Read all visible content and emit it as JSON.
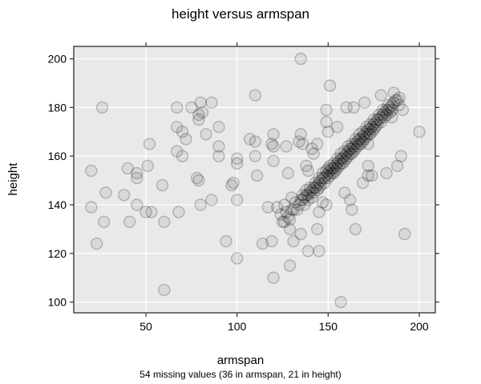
{
  "window": {
    "background": "#ffffff"
  },
  "chart_data": {
    "type": "scatter",
    "title": "height versus armspan",
    "xlabel": "armspan",
    "ylabel": "height",
    "footnote": "54 missing values (36 in armspan, 21 in height)",
    "x_ticks": [
      50,
      100,
      150,
      200
    ],
    "y_ticks": [
      100,
      120,
      140,
      160,
      180,
      200
    ],
    "xlim": [
      10.4,
      208.8
    ],
    "ylim": [
      95.6,
      205.1
    ],
    "grid": true,
    "legend": "none",
    "colors": {
      "panel_bg": "#e9e9e9",
      "grid": "#ffffff",
      "border": "#2e2e2e",
      "tick": "#2e2e2e",
      "point_fill": "rgba(0,0,0,0.065)",
      "point_stroke": "rgba(0,0,0,0.22)"
    },
    "point_radius": 7,
    "points": [
      [
        26,
        180
      ],
      [
        67,
        180
      ],
      [
        75,
        180
      ],
      [
        67,
        172
      ],
      [
        70,
        170
      ],
      [
        72,
        167
      ],
      [
        52,
        165
      ],
      [
        67,
        162
      ],
      [
        70,
        160
      ],
      [
        20,
        154
      ],
      [
        40,
        155
      ],
      [
        45,
        153
      ],
      [
        51,
        156
      ],
      [
        135,
        200
      ],
      [
        110,
        185
      ],
      [
        80,
        182
      ],
      [
        86,
        182
      ],
      [
        81,
        178
      ],
      [
        79,
        177
      ],
      [
        79,
        175
      ],
      [
        90,
        172
      ],
      [
        83,
        169
      ],
      [
        90,
        164
      ],
      [
        90,
        160
      ],
      [
        100,
        159
      ],
      [
        100,
        157
      ],
      [
        107,
        167
      ],
      [
        110,
        166
      ],
      [
        110,
        160
      ],
      [
        120,
        169
      ],
      [
        119,
        165
      ],
      [
        120,
        164
      ],
      [
        127,
        164
      ],
      [
        135,
        169
      ],
      [
        134,
        166
      ],
      [
        136,
        165
      ],
      [
        120,
        158
      ],
      [
        141,
        163
      ],
      [
        138,
        156
      ],
      [
        139,
        154
      ],
      [
        111,
        152
      ],
      [
        128,
        153
      ],
      [
        78,
        151
      ],
      [
        151,
        189
      ],
      [
        179,
        185
      ],
      [
        186,
        186
      ],
      [
        149,
        179
      ],
      [
        160,
        180
      ],
      [
        164,
        180
      ],
      [
        170,
        182
      ],
      [
        189,
        181
      ],
      [
        185,
        176
      ],
      [
        191,
        179
      ],
      [
        149,
        174
      ],
      [
        150,
        170
      ],
      [
        155,
        172
      ],
      [
        200,
        170
      ],
      [
        190,
        160
      ],
      [
        172,
        156
      ],
      [
        188,
        156
      ],
      [
        182,
        153
      ],
      [
        174,
        152
      ],
      [
        45,
        151
      ],
      [
        59,
        148
      ],
      [
        28,
        145
      ],
      [
        38,
        144
      ],
      [
        20,
        139
      ],
      [
        45,
        140
      ],
      [
        50,
        137
      ],
      [
        53,
        137
      ],
      [
        68,
        137
      ],
      [
        27,
        133
      ],
      [
        41,
        133
      ],
      [
        60,
        133
      ],
      [
        23,
        124
      ],
      [
        60,
        105
      ],
      [
        79,
        150
      ],
      [
        98,
        149
      ],
      [
        97,
        148
      ],
      [
        80,
        140
      ],
      [
        86,
        142
      ],
      [
        100,
        142
      ],
      [
        117,
        139
      ],
      [
        122,
        139
      ],
      [
        126,
        140
      ],
      [
        130,
        143
      ],
      [
        124,
        136
      ],
      [
        129,
        130
      ],
      [
        135,
        128
      ],
      [
        139,
        121
      ],
      [
        114,
        124
      ],
      [
        119,
        125
      ],
      [
        131,
        125
      ],
      [
        94,
        125
      ],
      [
        100,
        118
      ],
      [
        129,
        115
      ],
      [
        120,
        110
      ],
      [
        169,
        149
      ],
      [
        159,
        145
      ],
      [
        162,
        142
      ],
      [
        163,
        138
      ],
      [
        149,
        140
      ],
      [
        147,
        141
      ],
      [
        145,
        137
      ],
      [
        144,
        130
      ],
      [
        165,
        130
      ],
      [
        192,
        128
      ],
      [
        145,
        121
      ],
      [
        157,
        100
      ],
      [
        144,
        165
      ],
      [
        142,
        161
      ],
      [
        172,
        165
      ],
      [
        172,
        152
      ],
      [
        125,
        133
      ],
      [
        126,
        133
      ],
      [
        127,
        137
      ],
      [
        128,
        135
      ],
      [
        129,
        134
      ],
      [
        130,
        138
      ],
      [
        131,
        138
      ],
      [
        132,
        141
      ],
      [
        133,
        138
      ],
      [
        134,
        140
      ],
      [
        135,
        142
      ],
      [
        136,
        142
      ],
      [
        136,
        144
      ],
      [
        137,
        143
      ],
      [
        137,
        140
      ],
      [
        138,
        144
      ],
      [
        138,
        146
      ],
      [
        139,
        144
      ],
      [
        139,
        142
      ],
      [
        140,
        145
      ],
      [
        140,
        147
      ],
      [
        141,
        146
      ],
      [
        141,
        143
      ],
      [
        142,
        147
      ],
      [
        142,
        145
      ],
      [
        143,
        147
      ],
      [
        143,
        149
      ],
      [
        144,
        148
      ],
      [
        144,
        146
      ],
      [
        145,
        149
      ],
      [
        145,
        151
      ],
      [
        145,
        147
      ],
      [
        146,
        150
      ],
      [
        146,
        148
      ],
      [
        147,
        151
      ],
      [
        147,
        153
      ],
      [
        148,
        151
      ],
      [
        148,
        149
      ],
      [
        149,
        152
      ],
      [
        149,
        154
      ],
      [
        150,
        153
      ],
      [
        150,
        151
      ],
      [
        150,
        155
      ],
      [
        151,
        154
      ],
      [
        151,
        152
      ],
      [
        151,
        156
      ],
      [
        152,
        155
      ],
      [
        152,
        153
      ],
      [
        153,
        155
      ],
      [
        153,
        157
      ],
      [
        153,
        153
      ],
      [
        154,
        156
      ],
      [
        154,
        154
      ],
      [
        155,
        157
      ],
      [
        155,
        159
      ],
      [
        155,
        155
      ],
      [
        156,
        158
      ],
      [
        156,
        156
      ],
      [
        157,
        159
      ],
      [
        157,
        161
      ],
      [
        157,
        157
      ],
      [
        158,
        159
      ],
      [
        158,
        157
      ],
      [
        159,
        160
      ],
      [
        159,
        162
      ],
      [
        159,
        158
      ],
      [
        160,
        161
      ],
      [
        160,
        159
      ],
      [
        161,
        162
      ],
      [
        161,
        164
      ],
      [
        161,
        160
      ],
      [
        162,
        163
      ],
      [
        162,
        161
      ],
      [
        163,
        163
      ],
      [
        163,
        165
      ],
      [
        163,
        161
      ],
      [
        164,
        164
      ],
      [
        164,
        162
      ],
      [
        165,
        165
      ],
      [
        165,
        167
      ],
      [
        165,
        163
      ],
      [
        166,
        166
      ],
      [
        166,
        164
      ],
      [
        167,
        167
      ],
      [
        167,
        169
      ],
      [
        167,
        165
      ],
      [
        168,
        167
      ],
      [
        168,
        165
      ],
      [
        169,
        168
      ],
      [
        169,
        170
      ],
      [
        169,
        166
      ],
      [
        170,
        169
      ],
      [
        170,
        167
      ],
      [
        171,
        170
      ],
      [
        171,
        172
      ],
      [
        171,
        168
      ],
      [
        172,
        171
      ],
      [
        172,
        169
      ],
      [
        173,
        171
      ],
      [
        173,
        173
      ],
      [
        173,
        169
      ],
      [
        174,
        172
      ],
      [
        174,
        170
      ],
      [
        175,
        173
      ],
      [
        175,
        175
      ],
      [
        175,
        171
      ],
      [
        176,
        174
      ],
      [
        176,
        172
      ],
      [
        177,
        175
      ],
      [
        177,
        173
      ],
      [
        178,
        175
      ],
      [
        178,
        177
      ],
      [
        179,
        176
      ],
      [
        179,
        174
      ],
      [
        180,
        177
      ],
      [
        180,
        179
      ],
      [
        181,
        178
      ],
      [
        181,
        176
      ],
      [
        182,
        179
      ],
      [
        182,
        177
      ],
      [
        183,
        179
      ],
      [
        183,
        181
      ],
      [
        184,
        180
      ],
      [
        184,
        178
      ],
      [
        185,
        181
      ],
      [
        185,
        179
      ],
      [
        186,
        182
      ],
      [
        187,
        183
      ],
      [
        188,
        183
      ],
      [
        189,
        184
      ]
    ]
  }
}
